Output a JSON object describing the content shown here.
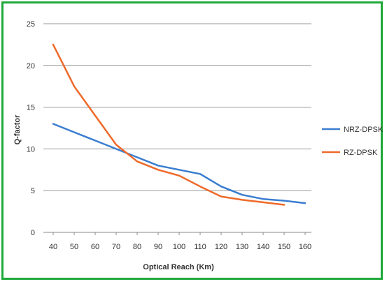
{
  "chart_data": {
    "type": "line",
    "title": "",
    "xlabel": "Optical Reach (Km)",
    "ylabel": "Q-factor",
    "x": [
      40,
      50,
      60,
      70,
      80,
      90,
      100,
      110,
      120,
      130,
      140,
      150,
      160
    ],
    "ylim": [
      0,
      25
    ],
    "yticks": [
      0,
      5,
      10,
      15,
      20,
      25
    ],
    "grid": "horizontal",
    "legend_position": "right",
    "series": [
      {
        "name": "NRZ-DPSK",
        "color": "#3a7dd0",
        "x": [
          40,
          50,
          60,
          70,
          80,
          90,
          100,
          110,
          120,
          130,
          140,
          150,
          160
        ],
        "values": [
          13,
          12,
          11,
          10,
          9,
          8,
          7.5,
          7,
          5.5,
          4.5,
          4,
          3.8,
          3.5
        ]
      },
      {
        "name": "RZ-DPSK",
        "color": "#ee6a2a",
        "x": [
          40,
          50,
          60,
          70,
          80,
          90,
          100,
          110,
          120,
          130,
          140,
          150
        ],
        "values": [
          22.5,
          17.5,
          14,
          10.5,
          8.5,
          7.5,
          6.8,
          5.5,
          4.3,
          3.9,
          3.6,
          3.3
        ]
      }
    ]
  }
}
